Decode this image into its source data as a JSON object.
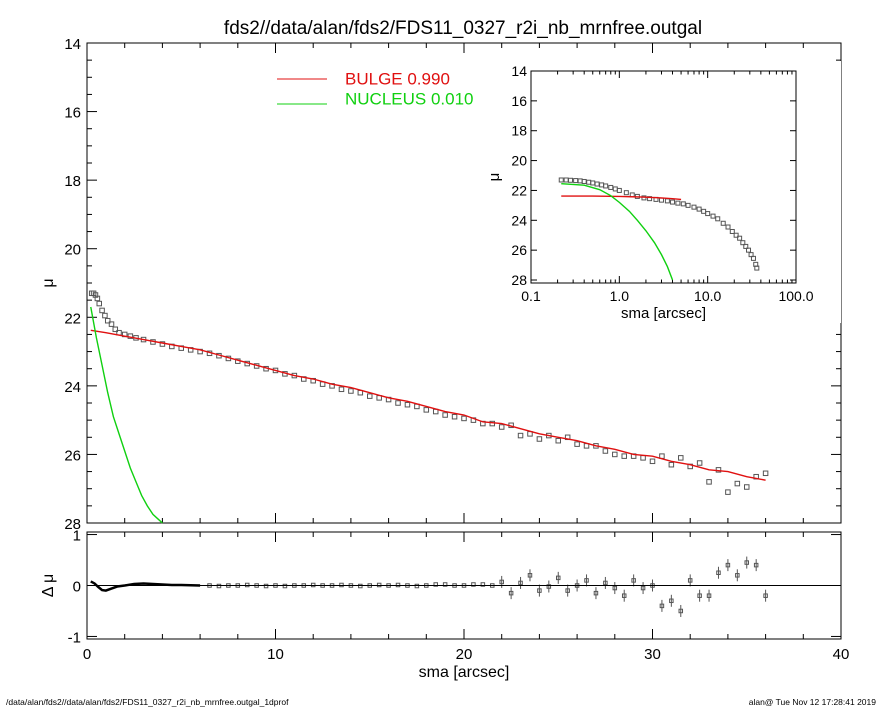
{
  "page": {
    "title": "fds2//data/alan/fds2/FDS11_0327_r2i_nb_mrnfree.outgal",
    "footer_left": "/data/alan/fds2//data/alan/fds2/FDS11_0327_r2i_nb_mrnfree.outgal_1dprof",
    "footer_right": "alan@  Tue Nov 12 17:28:41 2019"
  },
  "colors": {
    "data": "#555555",
    "bulge": "#e01010",
    "nucleus": "#10d010",
    "axes": "#000000"
  },
  "chart_data": [
    {
      "id": "main",
      "type": "scatter",
      "ylabel": "μ",
      "xlim": [
        0,
        40
      ],
      "ylim": [
        28,
        14
      ],
      "y_inverted": true,
      "yticks": [
        "14",
        "16",
        "18",
        "20",
        "22",
        "24",
        "26",
        "28"
      ],
      "xticks": [],
      "legend": [
        {
          "label": "BULGE  0.990",
          "color": "#e01010"
        },
        {
          "label": "NUCLEUS  0.010",
          "color": "#10d010"
        }
      ],
      "legend_position": "top-center",
      "series": [
        {
          "kind": "points",
          "x": [
            0.25,
            0.35,
            0.45,
            0.55,
            0.65,
            0.8,
            0.95,
            1.1,
            1.3,
            1.5,
            1.7,
            2.0,
            2.3,
            2.6,
            3.0,
            3.5,
            4.0,
            4.5,
            5.0,
            5.5,
            6.0,
            6.5,
            7.0,
            7.5,
            8.0,
            8.5,
            9.0,
            9.5,
            10.0,
            10.5,
            11.0,
            11.5,
            12.0,
            12.5,
            13.0,
            13.5,
            14.0,
            14.5,
            15.0,
            15.5,
            16.0,
            16.5,
            17.0,
            17.5,
            18.0,
            18.5,
            19.0,
            19.5,
            20.0,
            20.5,
            21.0,
            21.5,
            22.0,
            22.5,
            23.0,
            23.5,
            24.0,
            24.5,
            25.0,
            25.5,
            26.0,
            26.5,
            27.0,
            27.5,
            28.0,
            28.5,
            29.0,
            29.5,
            30.0,
            30.5,
            31.0,
            31.5,
            32.0,
            32.5,
            33.0,
            33.5,
            34.0,
            34.5,
            35.0,
            35.5,
            36.0
          ],
          "y": [
            21.3,
            21.3,
            21.35,
            21.45,
            21.6,
            21.8,
            21.95,
            22.1,
            22.2,
            22.35,
            22.45,
            22.5,
            22.55,
            22.6,
            22.65,
            22.72,
            22.78,
            22.85,
            22.9,
            22.95,
            23.0,
            23.05,
            23.12,
            23.2,
            23.28,
            23.35,
            23.42,
            23.5,
            23.55,
            23.65,
            23.7,
            23.8,
            23.85,
            23.95,
            24.0,
            24.1,
            24.15,
            24.2,
            24.3,
            24.35,
            24.4,
            24.5,
            24.55,
            24.6,
            24.7,
            24.75,
            24.85,
            24.9,
            24.95,
            25.0,
            25.1,
            25.1,
            25.2,
            25.15,
            25.45,
            25.4,
            25.55,
            25.45,
            25.6,
            25.5,
            25.7,
            25.75,
            25.75,
            25.9,
            26.0,
            26.05,
            26.05,
            26.1,
            26.2,
            26.05,
            26.3,
            26.1,
            26.35,
            26.25,
            26.8,
            26.45,
            27.1,
            26.85,
            26.95,
            26.65,
            26.55
          ],
          "color": "#555555"
        },
        {
          "kind": "line",
          "name": "BULGE",
          "x": [
            0.2,
            1,
            2,
            3,
            4,
            5,
            6,
            7,
            8,
            9,
            10,
            11,
            12,
            13,
            14,
            15,
            16,
            17,
            18,
            19,
            20,
            21,
            22,
            23,
            24,
            25,
            26,
            27,
            28,
            29,
            30,
            31,
            32,
            33,
            34,
            35,
            36
          ],
          "y": [
            22.38,
            22.45,
            22.55,
            22.65,
            22.75,
            22.85,
            22.95,
            23.1,
            23.25,
            23.4,
            23.55,
            23.7,
            23.8,
            23.95,
            24.05,
            24.2,
            24.35,
            24.45,
            24.6,
            24.75,
            24.85,
            25.05,
            25.1,
            25.25,
            25.4,
            25.5,
            25.6,
            25.75,
            25.85,
            26.0,
            26.05,
            26.2,
            26.3,
            26.45,
            26.5,
            26.65,
            26.75
          ],
          "color": "#e01010"
        },
        {
          "kind": "line",
          "name": "NUCLEUS",
          "x": [
            0.2,
            0.5,
            0.8,
            1.1,
            1.4,
            1.7,
            2.0,
            2.3,
            2.6,
            2.9,
            3.2,
            3.5,
            3.8,
            4.0
          ],
          "y": [
            21.7,
            22.6,
            23.4,
            24.2,
            24.9,
            25.4,
            25.9,
            26.4,
            26.8,
            27.2,
            27.5,
            27.75,
            27.9,
            28.0
          ],
          "color": "#10d010"
        }
      ]
    },
    {
      "id": "residual",
      "type": "scatter",
      "xlabel": "sma [arcsec]",
      "ylabel": "Δ μ",
      "xlim": [
        0,
        40
      ],
      "ylim": [
        -1.05,
        1.05
      ],
      "xticks": [
        "0",
        "10",
        "20",
        "30",
        "40"
      ],
      "yticks": [
        "1",
        "0",
        "-1"
      ],
      "series": [
        {
          "kind": "line",
          "name": "residual-inner",
          "x": [
            0.2,
            0.4,
            0.6,
            0.8,
            1.0,
            1.3,
            1.6,
            2.0,
            2.5,
            3.0,
            3.5,
            4.0,
            4.5,
            5.0,
            6.0
          ],
          "y": [
            0.08,
            0.04,
            -0.03,
            -0.09,
            -0.1,
            -0.06,
            -0.02,
            0.0,
            0.03,
            0.04,
            0.03,
            0.02,
            0.01,
            0.01,
            0.0
          ],
          "color": "#000000"
        },
        {
          "kind": "points",
          "x": [
            6.5,
            7.0,
            7.5,
            8.0,
            8.5,
            9.0,
            9.5,
            10.0,
            10.5,
            11.0,
            11.5,
            12.0,
            12.5,
            13.0,
            13.5,
            14.0,
            14.5,
            15.0,
            15.5,
            16.0,
            16.5,
            17.0,
            17.5,
            18.0,
            18.5,
            19.0,
            19.5,
            20.0,
            20.5,
            21.0,
            21.5,
            22.0,
            22.5,
            23.0,
            23.5,
            24.0,
            24.5,
            25.0,
            25.5,
            26.0,
            26.5,
            27.0,
            27.5,
            28.0,
            28.5,
            29.0,
            29.5,
            30.0,
            30.5,
            31.0,
            31.5,
            32.0,
            32.5,
            33.0,
            33.5,
            34.0,
            34.5,
            35.0,
            35.5,
            36.0
          ],
          "y": [
            0.0,
            -0.01,
            0.0,
            0.0,
            0.01,
            0.0,
            -0.01,
            0.0,
            -0.01,
            0.0,
            0.0,
            0.01,
            0.0,
            0.0,
            0.01,
            0.0,
            -0.01,
            0.0,
            0.01,
            0.0,
            0.01,
            0.0,
            -0.01,
            0.0,
            0.02,
            0.02,
            0.0,
            0.0,
            0.02,
            0.02,
            0.0,
            0.07,
            -0.15,
            0.05,
            0.2,
            -0.1,
            -0.02,
            0.15,
            -0.1,
            0.0,
            0.1,
            -0.15,
            0.05,
            -0.05,
            -0.2,
            0.1,
            -0.05,
            0.0,
            -0.4,
            -0.3,
            -0.5,
            0.1,
            -0.2,
            -0.2,
            0.25,
            0.4,
            0.2,
            0.45,
            0.4,
            -0.2
          ],
          "color": "#555555"
        },
        {
          "kind": "hline",
          "y": 0,
          "color": "#000000"
        }
      ]
    },
    {
      "id": "inset",
      "type": "scatter",
      "xlabel": "sma [arcsec]",
      "ylabel": "μ",
      "x_scale": "log",
      "xlim": [
        0.1,
        100
      ],
      "ylim": [
        28.2,
        14
      ],
      "xticks": [
        "0.1",
        "1.0",
        "10.0",
        "100.0"
      ],
      "yticks": [
        "14",
        "16",
        "18",
        "20",
        "22",
        "24",
        "26",
        "28"
      ],
      "series": [
        {
          "kind": "points",
          "x": [
            0.22,
            0.25,
            0.28,
            0.32,
            0.36,
            0.4,
            0.45,
            0.5,
            0.56,
            0.63,
            0.7,
            0.8,
            0.9,
            1.0,
            1.2,
            1.4,
            1.6,
            1.9,
            2.2,
            2.6,
            3.0,
            3.5,
            4.0,
            4.6,
            5.3,
            6.0,
            7.0,
            8.0,
            9.0,
            10.0,
            11.5,
            13.0,
            15.0,
            17.0,
            19.0,
            21.0,
            23.0,
            25.0,
            27.0,
            29.0,
            31.0,
            33.0,
            35.0,
            36.0
          ],
          "y": [
            21.3,
            21.3,
            21.32,
            21.34,
            21.36,
            21.4,
            21.45,
            21.5,
            21.57,
            21.63,
            21.7,
            21.8,
            21.9,
            22.0,
            22.15,
            22.3,
            22.4,
            22.5,
            22.55,
            22.6,
            22.65,
            22.7,
            22.78,
            22.85,
            22.9,
            23.0,
            23.12,
            23.25,
            23.4,
            23.55,
            23.72,
            23.9,
            24.2,
            24.45,
            24.75,
            25.0,
            25.2,
            25.5,
            25.75,
            26.0,
            26.3,
            26.55,
            26.95,
            27.2
          ],
          "color": "#555555"
        },
        {
          "kind": "line",
          "name": "BULGE",
          "x": [
            0.22,
            0.5,
            1,
            2,
            3,
            4,
            5
          ],
          "y": [
            22.38,
            22.38,
            22.4,
            22.45,
            22.5,
            22.55,
            22.6
          ],
          "color": "#e01010"
        },
        {
          "kind": "line",
          "name": "NUCLEUS",
          "x": [
            0.22,
            0.4,
            0.6,
            0.8,
            1.0,
            1.3,
            1.6,
            2.0,
            2.5,
            3.0,
            3.5,
            4.0
          ],
          "y": [
            21.55,
            21.65,
            21.95,
            22.35,
            22.8,
            23.4,
            24.0,
            24.7,
            25.5,
            26.3,
            27.1,
            28.0
          ],
          "color": "#10d010"
        }
      ]
    }
  ]
}
